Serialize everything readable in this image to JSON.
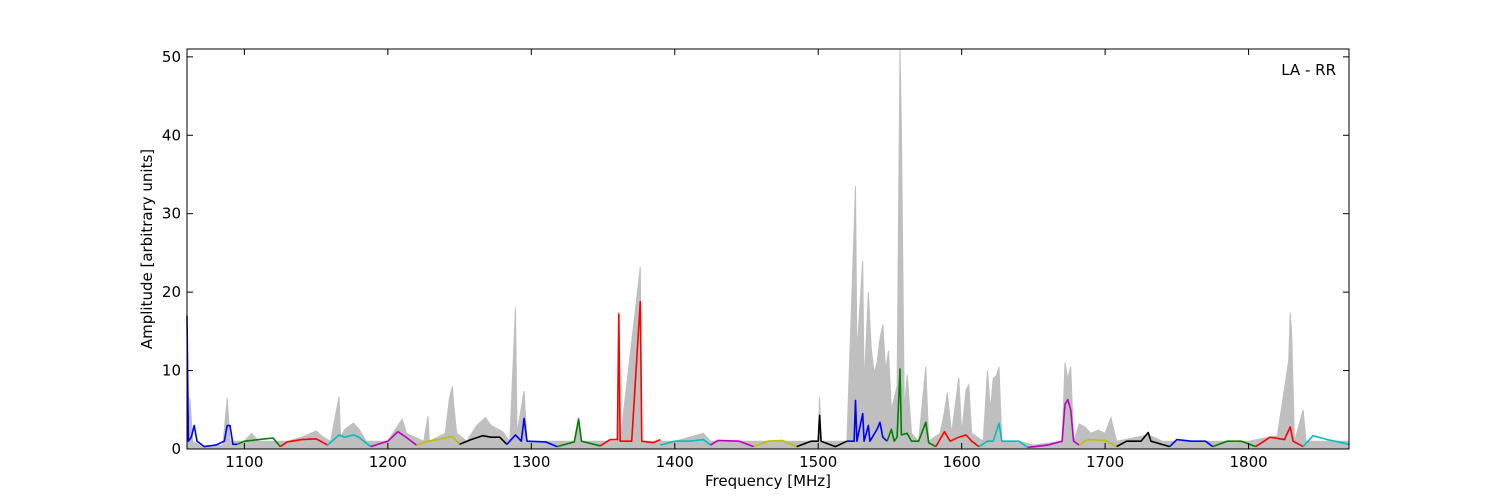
{
  "chart_data": {
    "type": "line",
    "annotation": "LA - RR",
    "xlabel": "Frequency [MHz]",
    "ylabel": "Amplitude [arbitrary units]",
    "xlim": [
      1060,
      1870
    ],
    "ylim": [
      0,
      51
    ],
    "xticks": [
      1100,
      1200,
      1300,
      1400,
      1500,
      1600,
      1700,
      1800
    ],
    "yticks": [
      0,
      10,
      20,
      30,
      40,
      50
    ],
    "grid": false,
    "background_series": {
      "color": "#bfbfbf",
      "points": [
        [
          1060,
          0.6
        ],
        [
          1062,
          6.5
        ],
        [
          1064,
          1
        ],
        [
          1070,
          0.3
        ],
        [
          1085,
          0.5
        ],
        [
          1088,
          6.5
        ],
        [
          1090,
          1
        ],
        [
          1100,
          1
        ],
        [
          1105,
          2
        ],
        [
          1110,
          1
        ],
        [
          1130,
          1
        ],
        [
          1140,
          1.5
        ],
        [
          1150,
          2.3
        ],
        [
          1155,
          1.5
        ],
        [
          1160,
          1
        ],
        [
          1166,
          6.7
        ],
        [
          1167,
          1.5
        ],
        [
          1170,
          2.5
        ],
        [
          1176,
          3.3
        ],
        [
          1180,
          2.5
        ],
        [
          1185,
          1
        ],
        [
          1200,
          1
        ],
        [
          1207,
          3
        ],
        [
          1210,
          3.8
        ],
        [
          1213,
          2
        ],
        [
          1225,
          1
        ],
        [
          1228,
          4.2
        ],
        [
          1229,
          1
        ],
        [
          1240,
          2
        ],
        [
          1243,
          6.5
        ],
        [
          1245,
          8
        ],
        [
          1246,
          5.5
        ],
        [
          1248,
          2
        ],
        [
          1255,
          1
        ],
        [
          1262,
          3
        ],
        [
          1268,
          4
        ],
        [
          1272,
          3
        ],
        [
          1280,
          2.2
        ],
        [
          1285,
          1
        ],
        [
          1289,
          18
        ],
        [
          1290,
          2
        ],
        [
          1295,
          7.4
        ],
        [
          1297,
          1
        ],
        [
          1330,
          1
        ],
        [
          1333,
          4
        ],
        [
          1335,
          1
        ],
        [
          1360,
          1
        ],
        [
          1361,
          17.5
        ],
        [
          1362,
          1
        ],
        [
          1376,
          23.2
        ],
        [
          1377,
          1
        ],
        [
          1400,
          1
        ],
        [
          1420,
          2
        ],
        [
          1425,
          1
        ],
        [
          1500,
          1
        ],
        [
          1501,
          6.6
        ],
        [
          1502,
          1
        ],
        [
          1520,
          1
        ],
        [
          1526,
          33.5
        ],
        [
          1527,
          12
        ],
        [
          1531,
          24
        ],
        [
          1532,
          8
        ],
        [
          1535,
          20
        ],
        [
          1537,
          12.7
        ],
        [
          1539,
          9.7
        ],
        [
          1541,
          11
        ],
        [
          1543,
          14
        ],
        [
          1545,
          15.9
        ],
        [
          1547,
          10
        ],
        [
          1549,
          12.5
        ],
        [
          1551,
          5
        ],
        [
          1555,
          8
        ],
        [
          1557,
          51
        ],
        [
          1558,
          41
        ],
        [
          1560,
          5
        ],
        [
          1562,
          9.5
        ],
        [
          1565,
          2
        ],
        [
          1570,
          1
        ],
        [
          1575,
          10.5
        ],
        [
          1577,
          1
        ],
        [
          1585,
          2
        ],
        [
          1588,
          4.8
        ],
        [
          1590,
          7.2
        ],
        [
          1593,
          2
        ],
        [
          1598,
          9.1
        ],
        [
          1600,
          2
        ],
        [
          1603,
          7.5
        ],
        [
          1605,
          8.2
        ],
        [
          1607,
          2
        ],
        [
          1615,
          1
        ],
        [
          1618,
          10
        ],
        [
          1620,
          5
        ],
        [
          1622,
          9
        ],
        [
          1624,
          9.3
        ],
        [
          1626,
          10.5
        ],
        [
          1628,
          1
        ],
        [
          1640,
          1
        ],
        [
          1650,
          0.5
        ],
        [
          1670,
          1
        ],
        [
          1672,
          11
        ],
        [
          1674,
          9
        ],
        [
          1676,
          10.5
        ],
        [
          1678,
          1
        ],
        [
          1682,
          3.2
        ],
        [
          1686,
          2.8
        ],
        [
          1690,
          2
        ],
        [
          1695,
          2.4
        ],
        [
          1700,
          2
        ],
        [
          1704,
          4
        ],
        [
          1708,
          1
        ],
        [
          1730,
          1.8
        ],
        [
          1740,
          1
        ],
        [
          1800,
          1
        ],
        [
          1820,
          1.7
        ],
        [
          1828,
          11.3
        ],
        [
          1829,
          17.4
        ],
        [
          1830,
          15
        ],
        [
          1832,
          1
        ],
        [
          1838,
          5
        ],
        [
          1840,
          1
        ],
        [
          1870,
          1
        ]
      ]
    },
    "series": [
      {
        "color": "#0000ff",
        "points": [
          [
            1060,
            17
          ],
          [
            1061,
            1
          ],
          [
            1063,
            1.5
          ],
          [
            1065,
            3
          ],
          [
            1067,
            1
          ],
          [
            1072,
            0.3
          ],
          [
            1080,
            0.5
          ],
          [
            1086,
            1
          ],
          [
            1088,
            3
          ],
          [
            1090,
            3
          ],
          [
            1092,
            0.6
          ],
          [
            1095,
            0.6
          ]
        ]
      },
      {
        "color": "#007f00",
        "points": [
          [
            1095,
            0.6
          ],
          [
            1100,
            1
          ],
          [
            1110,
            1.2
          ],
          [
            1120,
            1.4
          ],
          [
            1125,
            0.3
          ]
        ]
      },
      {
        "color": "#ff0000",
        "points": [
          [
            1125,
            0.3
          ],
          [
            1130,
            0.9
          ],
          [
            1140,
            1.2
          ],
          [
            1150,
            1.3
          ],
          [
            1158,
            0.5
          ]
        ]
      },
      {
        "color": "#00bfbf",
        "points": [
          [
            1158,
            0.5
          ],
          [
            1166,
            1.8
          ],
          [
            1170,
            1.5
          ],
          [
            1176,
            1.8
          ],
          [
            1180,
            1.5
          ],
          [
            1188,
            0.3
          ]
        ]
      },
      {
        "color": "#bf00bf",
        "points": [
          [
            1188,
            0.3
          ],
          [
            1200,
            1
          ],
          [
            1207,
            2.2
          ],
          [
            1212,
            1.6
          ],
          [
            1220,
            0.5
          ]
        ]
      },
      {
        "color": "#bfbf00",
        "points": [
          [
            1220,
            0.5
          ],
          [
            1228,
            1
          ],
          [
            1235,
            1.2
          ],
          [
            1242,
            1.5
          ],
          [
            1245,
            1.6
          ],
          [
            1250,
            0.6
          ]
        ]
      },
      {
        "color": "#000000",
        "points": [
          [
            1250,
            0.6
          ],
          [
            1258,
            1.2
          ],
          [
            1266,
            1.7
          ],
          [
            1272,
            1.5
          ],
          [
            1278,
            1.5
          ],
          [
            1283,
            0.6
          ]
        ]
      },
      {
        "color": "#0000ff",
        "points": [
          [
            1283,
            0.6
          ],
          [
            1289,
            1.8
          ],
          [
            1293,
            1
          ],
          [
            1295,
            3.9
          ],
          [
            1297,
            1
          ],
          [
            1310,
            0.9
          ],
          [
            1318,
            0.3
          ]
        ]
      },
      {
        "color": "#007f00",
        "points": [
          [
            1318,
            0.3
          ],
          [
            1330,
            0.9
          ],
          [
            1333,
            3.8
          ],
          [
            1335,
            1
          ],
          [
            1348,
            0.4
          ]
        ]
      },
      {
        "color": "#ff0000",
        "points": [
          [
            1348,
            0.4
          ],
          [
            1355,
            1.2
          ],
          [
            1360,
            1.2
          ],
          [
            1361,
            17.2
          ],
          [
            1362,
            1
          ],
          [
            1370,
            1
          ],
          [
            1376,
            18.8
          ],
          [
            1377,
            1
          ],
          [
            1385,
            0.8
          ],
          [
            1390,
            1.2
          ]
        ]
      },
      {
        "color": "#00bfbf",
        "points": [
          [
            1390,
            0.5
          ],
          [
            1400,
            1
          ],
          [
            1410,
            1
          ],
          [
            1420,
            1.2
          ],
          [
            1425,
            0.5
          ]
        ]
      },
      {
        "color": "#bf00bf",
        "points": [
          [
            1425,
            0.5
          ],
          [
            1430,
            1.1
          ],
          [
            1445,
            1
          ],
          [
            1455,
            0.3
          ]
        ]
      },
      {
        "color": "#bfbf00",
        "points": [
          [
            1455,
            0.3
          ],
          [
            1465,
            1
          ],
          [
            1475,
            1.1
          ],
          [
            1485,
            0.3
          ]
        ]
      },
      {
        "color": "#000000",
        "points": [
          [
            1485,
            0.3
          ],
          [
            1495,
            1
          ],
          [
            1500,
            1
          ],
          [
            1501,
            4.3
          ],
          [
            1502,
            1
          ],
          [
            1512,
            0.3
          ],
          [
            1520,
            1
          ]
        ]
      },
      {
        "color": "#0000ff",
        "points": [
          [
            1520,
            1
          ],
          [
            1525,
            1
          ],
          [
            1526,
            6.2
          ],
          [
            1527,
            1
          ],
          [
            1531,
            4.5
          ],
          [
            1532,
            1
          ],
          [
            1535,
            3
          ],
          [
            1536,
            1
          ],
          [
            1541,
            2.5
          ],
          [
            1543,
            3.4
          ],
          [
            1545,
            1.5
          ],
          [
            1548,
            1
          ]
        ]
      },
      {
        "color": "#007f00",
        "points": [
          [
            1548,
            1
          ],
          [
            1551,
            2.5
          ],
          [
            1553,
            1
          ],
          [
            1555,
            1.5
          ],
          [
            1557,
            10.2
          ],
          [
            1558,
            1.8
          ],
          [
            1562,
            2
          ],
          [
            1565,
            1
          ],
          [
            1570,
            1
          ],
          [
            1575,
            3.4
          ],
          [
            1577,
            0.8
          ],
          [
            1582,
            0.3
          ]
        ]
      },
      {
        "color": "#ff0000",
        "points": [
          [
            1582,
            0.3
          ],
          [
            1588,
            2.2
          ],
          [
            1592,
            1
          ],
          [
            1598,
            1.5
          ],
          [
            1603,
            1.8
          ],
          [
            1607,
            1
          ],
          [
            1612,
            0.3
          ]
        ]
      },
      {
        "color": "#00bfbf",
        "points": [
          [
            1612,
            0.3
          ],
          [
            1618,
            1
          ],
          [
            1622,
            1
          ],
          [
            1626,
            3.3
          ],
          [
            1628,
            1
          ],
          [
            1640,
            1
          ],
          [
            1646,
            0.2
          ]
        ]
      },
      {
        "color": "#bf00bf",
        "points": [
          [
            1646,
            0.2
          ],
          [
            1660,
            0.5
          ],
          [
            1670,
            1
          ],
          [
            1672,
            5.7
          ],
          [
            1674,
            6.3
          ],
          [
            1676,
            5
          ],
          [
            1678,
            1
          ],
          [
            1682,
            0.5
          ]
        ]
      },
      {
        "color": "#bfbf00",
        "points": [
          [
            1682,
            0.5
          ],
          [
            1688,
            1.2
          ],
          [
            1700,
            1.1
          ],
          [
            1708,
            0.3
          ]
        ]
      },
      {
        "color": "#000000",
        "points": [
          [
            1708,
            0.3
          ],
          [
            1715,
            1
          ],
          [
            1725,
            1
          ],
          [
            1730,
            2.1
          ],
          [
            1732,
            1
          ],
          [
            1745,
            0.3
          ]
        ]
      },
      {
        "color": "#0000ff",
        "points": [
          [
            1745,
            0.3
          ],
          [
            1750,
            1.2
          ],
          [
            1760,
            1
          ],
          [
            1770,
            1
          ],
          [
            1775,
            0.3
          ]
        ]
      },
      {
        "color": "#007f00",
        "points": [
          [
            1775,
            0.3
          ],
          [
            1785,
            1
          ],
          [
            1795,
            1
          ],
          [
            1805,
            0.3
          ]
        ]
      },
      {
        "color": "#ff0000",
        "points": [
          [
            1805,
            0.3
          ],
          [
            1815,
            1.5
          ],
          [
            1825,
            1.2
          ],
          [
            1829,
            2.8
          ],
          [
            1831,
            1
          ],
          [
            1838,
            0.3
          ]
        ]
      },
      {
        "color": "#00bfbf",
        "points": [
          [
            1838,
            0.3
          ],
          [
            1845,
            1.7
          ],
          [
            1855,
            1.2
          ],
          [
            1865,
            0.8
          ],
          [
            1870,
            0.6
          ]
        ]
      }
    ]
  }
}
